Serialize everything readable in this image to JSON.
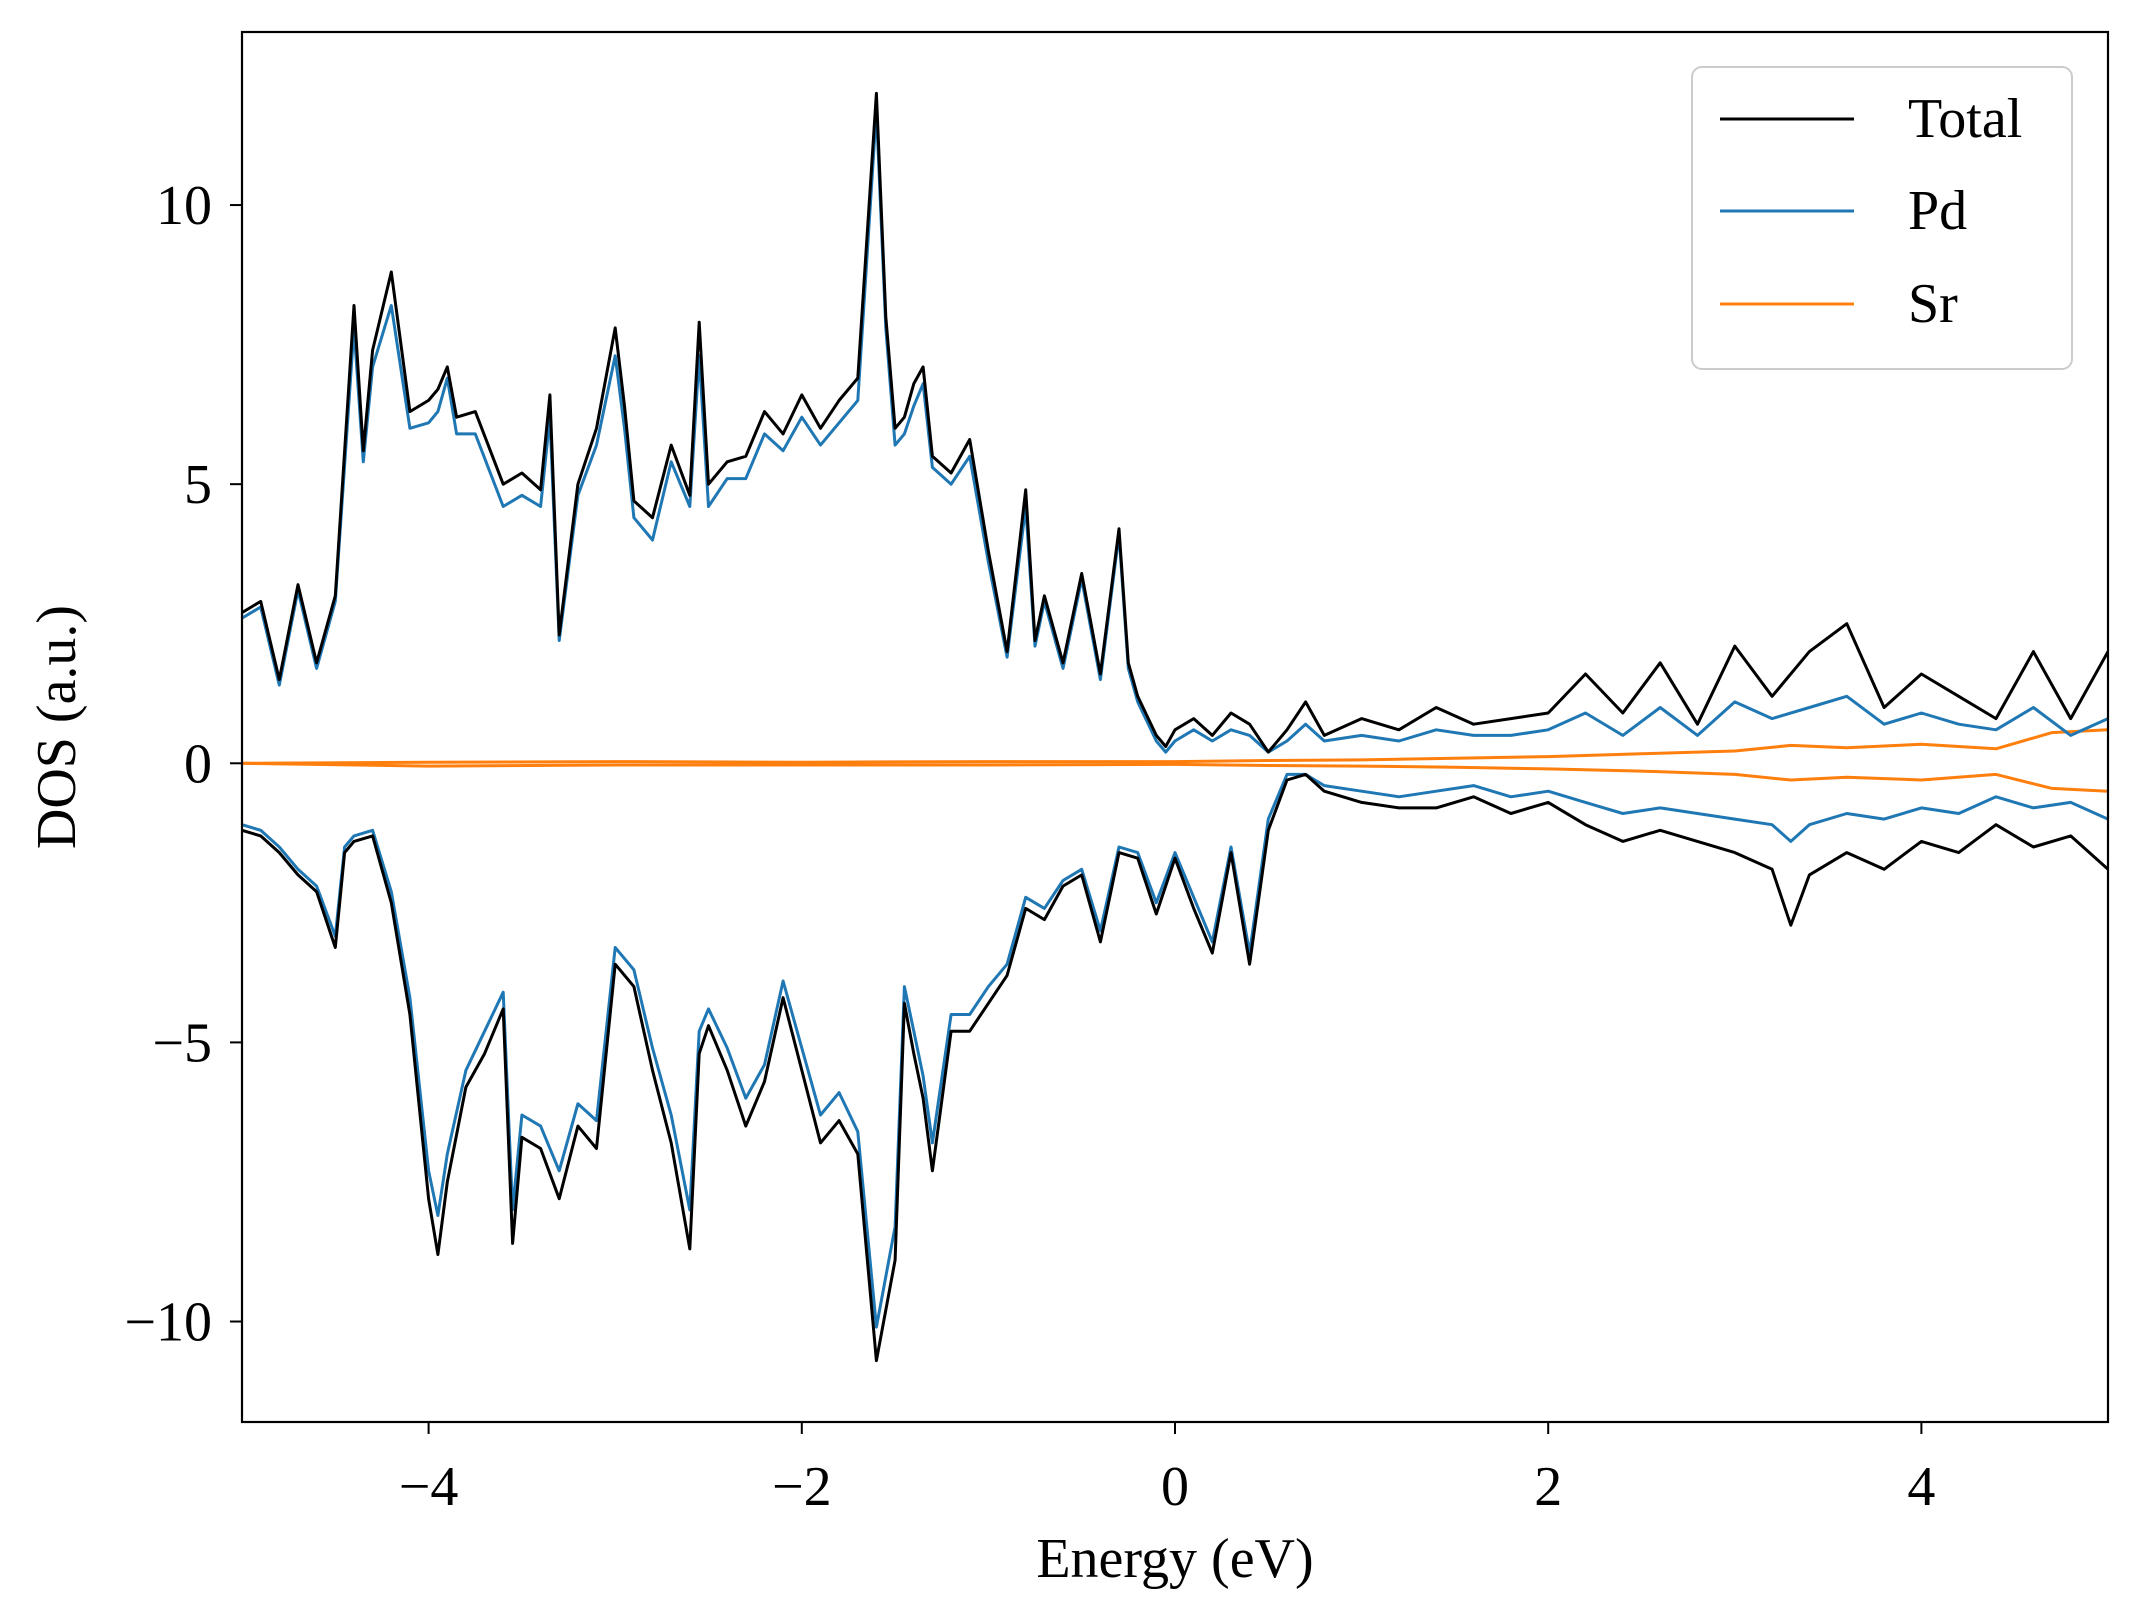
{
  "chart_data": {
    "type": "line",
    "title": "",
    "xlabel": "Energy (eV)",
    "ylabel": "DOS (a.u.)",
    "xlim": [
      -5,
      5
    ],
    "ylim": [
      -11.8,
      13.1
    ],
    "xticks": [
      -4,
      -2,
      0,
      2,
      4
    ],
    "yticks": [
      -10,
      -5,
      0,
      5,
      10
    ],
    "xtick_labels": [
      "−4",
      "−2",
      "0",
      "2",
      "4"
    ],
    "ytick_labels": [
      "−10",
      "−5",
      "0",
      "5",
      "10"
    ],
    "grid": false,
    "legend_position": "top-right",
    "series": [
      {
        "name": "Total",
        "color": "#000000",
        "spin_up": {
          "x": [
            -5.0,
            -4.9,
            -4.8,
            -4.7,
            -4.6,
            -4.5,
            -4.4,
            -4.35,
            -4.3,
            -4.2,
            -4.1,
            -4.0,
            -3.95,
            -3.9,
            -3.85,
            -3.75,
            -3.6,
            -3.5,
            -3.4,
            -3.35,
            -3.3,
            -3.2,
            -3.1,
            -3.0,
            -2.95,
            -2.9,
            -2.8,
            -2.7,
            -2.6,
            -2.55,
            -2.5,
            -2.4,
            -2.3,
            -2.2,
            -2.1,
            -2.0,
            -1.9,
            -1.8,
            -1.7,
            -1.6,
            -1.55,
            -1.5,
            -1.45,
            -1.4,
            -1.35,
            -1.3,
            -1.2,
            -1.1,
            -1.0,
            -0.9,
            -0.8,
            -0.75,
            -0.7,
            -0.6,
            -0.5,
            -0.4,
            -0.3,
            -0.25,
            -0.2,
            -0.1,
            -0.05,
            0.0,
            0.1,
            0.2,
            0.3,
            0.4,
            0.5,
            0.6,
            0.7,
            0.8,
            1.0,
            1.2,
            1.4,
            1.6,
            1.8,
            2.0,
            2.2,
            2.4,
            2.6,
            2.8,
            3.0,
            3.2,
            3.4,
            3.6,
            3.8,
            4.0,
            4.2,
            4.4,
            4.6,
            4.8,
            5.0
          ],
          "y": [
            2.7,
            2.9,
            1.5,
            3.2,
            1.8,
            3.0,
            8.2,
            5.6,
            7.4,
            8.8,
            6.3,
            6.5,
            6.7,
            7.1,
            6.2,
            6.3,
            5.0,
            5.2,
            4.9,
            6.6,
            2.3,
            5.0,
            6.0,
            7.8,
            6.4,
            4.7,
            4.4,
            5.7,
            4.8,
            7.9,
            5.0,
            5.4,
            5.5,
            6.3,
            5.9,
            6.6,
            6.0,
            6.5,
            6.9,
            12.0,
            8.0,
            6.0,
            6.2,
            6.8,
            7.1,
            5.5,
            5.2,
            5.8,
            3.8,
            2.0,
            4.9,
            2.2,
            3.0,
            1.8,
            3.4,
            1.6,
            4.2,
            1.8,
            1.2,
            0.5,
            0.3,
            0.6,
            0.8,
            0.5,
            0.9,
            0.7,
            0.2,
            0.6,
            1.1,
            0.5,
            0.8,
            0.6,
            1.0,
            0.7,
            0.8,
            0.9,
            1.6,
            0.9,
            1.8,
            0.7,
            2.1,
            1.2,
            2.0,
            2.5,
            1.0,
            1.6,
            1.2,
            0.8,
            2.0,
            0.8,
            2.0
          ]
        },
        "spin_down": {
          "x": [
            -5.0,
            -4.9,
            -4.8,
            -4.7,
            -4.6,
            -4.5,
            -4.45,
            -4.4,
            -4.3,
            -4.2,
            -4.1,
            -4.0,
            -3.95,
            -3.9,
            -3.8,
            -3.7,
            -3.6,
            -3.55,
            -3.5,
            -3.4,
            -3.3,
            -3.2,
            -3.1,
            -3.0,
            -2.9,
            -2.8,
            -2.7,
            -2.6,
            -2.55,
            -2.5,
            -2.4,
            -2.3,
            -2.2,
            -2.1,
            -2.0,
            -1.9,
            -1.8,
            -1.7,
            -1.6,
            -1.5,
            -1.45,
            -1.4,
            -1.35,
            -1.3,
            -1.2,
            -1.1,
            -1.0,
            -0.9,
            -0.8,
            -0.7,
            -0.6,
            -0.5,
            -0.4,
            -0.3,
            -0.2,
            -0.1,
            0.0,
            0.1,
            0.2,
            0.3,
            0.4,
            0.5,
            0.6,
            0.7,
            0.8,
            1.0,
            1.2,
            1.4,
            1.6,
            1.8,
            2.0,
            2.2,
            2.4,
            2.6,
            2.8,
            3.0,
            3.2,
            3.3,
            3.4,
            3.6,
            3.8,
            4.0,
            4.2,
            4.4,
            4.6,
            4.8,
            5.0
          ],
          "y": [
            -1.2,
            -1.3,
            -1.6,
            -2.0,
            -2.3,
            -3.3,
            -1.6,
            -1.4,
            -1.3,
            -2.5,
            -4.5,
            -7.8,
            -8.8,
            -7.5,
            -5.8,
            -5.2,
            -4.4,
            -8.6,
            -6.7,
            -6.9,
            -7.8,
            -6.5,
            -6.9,
            -3.6,
            -4.0,
            -5.5,
            -6.8,
            -8.7,
            -5.2,
            -4.7,
            -5.5,
            -6.5,
            -5.7,
            -4.2,
            -5.5,
            -6.8,
            -6.4,
            -7.0,
            -10.7,
            -8.9,
            -4.3,
            -5.2,
            -6.0,
            -7.3,
            -4.8,
            -4.8,
            -4.3,
            -3.8,
            -2.6,
            -2.8,
            -2.2,
            -2.0,
            -3.2,
            -1.6,
            -1.7,
            -2.7,
            -1.7,
            -2.6,
            -3.4,
            -1.6,
            -3.6,
            -1.2,
            -0.3,
            -0.2,
            -0.5,
            -0.7,
            -0.8,
            -0.8,
            -0.6,
            -0.9,
            -0.7,
            -1.1,
            -1.4,
            -1.2,
            -1.4,
            -1.6,
            -1.9,
            -2.9,
            -2.0,
            -1.6,
            -1.9,
            -1.4,
            -1.6,
            -1.1,
            -1.5,
            -1.3,
            -1.9
          ]
        }
      },
      {
        "name": "Pd",
        "color": "#1f77b4",
        "spin_up": {
          "x": [
            -5.0,
            -4.9,
            -4.8,
            -4.7,
            -4.6,
            -4.5,
            -4.4,
            -4.35,
            -4.3,
            -4.2,
            -4.1,
            -4.0,
            -3.95,
            -3.9,
            -3.85,
            -3.75,
            -3.6,
            -3.5,
            -3.4,
            -3.35,
            -3.3,
            -3.2,
            -3.1,
            -3.0,
            -2.95,
            -2.9,
            -2.8,
            -2.7,
            -2.6,
            -2.55,
            -2.5,
            -2.4,
            -2.3,
            -2.2,
            -2.1,
            -2.0,
            -1.9,
            -1.8,
            -1.7,
            -1.6,
            -1.55,
            -1.5,
            -1.45,
            -1.4,
            -1.35,
            -1.3,
            -1.2,
            -1.1,
            -1.0,
            -0.9,
            -0.8,
            -0.75,
            -0.7,
            -0.6,
            -0.5,
            -0.4,
            -0.3,
            -0.25,
            -0.2,
            -0.1,
            -0.05,
            0.0,
            0.1,
            0.2,
            0.3,
            0.4,
            0.5,
            0.6,
            0.7,
            0.8,
            1.0,
            1.2,
            1.4,
            1.6,
            1.8,
            2.0,
            2.2,
            2.4,
            2.6,
            2.8,
            3.0,
            3.2,
            3.4,
            3.6,
            3.8,
            4.0,
            4.2,
            4.4,
            4.6,
            4.8,
            5.0
          ],
          "y": [
            2.6,
            2.8,
            1.4,
            3.1,
            1.7,
            2.9,
            7.8,
            5.4,
            7.1,
            8.2,
            6.0,
            6.1,
            6.3,
            6.9,
            5.9,
            5.9,
            4.6,
            4.8,
            4.6,
            6.2,
            2.2,
            4.8,
            5.7,
            7.3,
            6.0,
            4.4,
            4.0,
            5.4,
            4.6,
            7.3,
            4.6,
            5.1,
            5.1,
            5.9,
            5.6,
            6.2,
            5.7,
            6.1,
            6.5,
            11.7,
            7.8,
            5.7,
            5.9,
            6.4,
            6.8,
            5.3,
            5.0,
            5.5,
            3.6,
            1.9,
            4.6,
            2.1,
            2.9,
            1.7,
            3.3,
            1.5,
            4.1,
            1.7,
            1.1,
            0.4,
            0.2,
            0.4,
            0.6,
            0.4,
            0.6,
            0.5,
            0.2,
            0.4,
            0.7,
            0.4,
            0.5,
            0.4,
            0.6,
            0.5,
            0.5,
            0.6,
            0.9,
            0.5,
            1.0,
            0.5,
            1.1,
            0.8,
            1.0,
            1.2,
            0.7,
            0.9,
            0.7,
            0.6,
            1.0,
            0.5,
            0.8
          ]
        },
        "spin_down": {
          "x": [
            -5.0,
            -4.9,
            -4.8,
            -4.7,
            -4.6,
            -4.5,
            -4.45,
            -4.4,
            -4.3,
            -4.2,
            -4.1,
            -4.0,
            -3.95,
            -3.9,
            -3.8,
            -3.7,
            -3.6,
            -3.55,
            -3.5,
            -3.4,
            -3.3,
            -3.2,
            -3.1,
            -3.0,
            -2.9,
            -2.8,
            -2.7,
            -2.6,
            -2.55,
            -2.5,
            -2.4,
            -2.3,
            -2.2,
            -2.1,
            -2.0,
            -1.9,
            -1.8,
            -1.7,
            -1.6,
            -1.5,
            -1.45,
            -1.4,
            -1.35,
            -1.3,
            -1.2,
            -1.1,
            -1.0,
            -0.9,
            -0.8,
            -0.7,
            -0.6,
            -0.5,
            -0.4,
            -0.3,
            -0.2,
            -0.1,
            0.0,
            0.1,
            0.2,
            0.3,
            0.4,
            0.5,
            0.6,
            0.7,
            0.8,
            1.0,
            1.2,
            1.4,
            1.6,
            1.8,
            2.0,
            2.2,
            2.4,
            2.6,
            2.8,
            3.0,
            3.2,
            3.3,
            3.4,
            3.6,
            3.8,
            4.0,
            4.2,
            4.4,
            4.6,
            4.8,
            5.0
          ],
          "y": [
            -1.1,
            -1.2,
            -1.5,
            -1.9,
            -2.2,
            -3.1,
            -1.5,
            -1.3,
            -1.2,
            -2.3,
            -4.2,
            -7.3,
            -8.1,
            -7.0,
            -5.5,
            -4.8,
            -4.1,
            -8.0,
            -6.3,
            -6.5,
            -7.3,
            -6.1,
            -6.4,
            -3.3,
            -3.7,
            -5.1,
            -6.3,
            -8.0,
            -4.8,
            -4.4,
            -5.1,
            -6.0,
            -5.4,
            -3.9,
            -5.1,
            -6.3,
            -5.9,
            -6.6,
            -10.1,
            -8.3,
            -4.0,
            -4.8,
            -5.6,
            -6.8,
            -4.5,
            -4.5,
            -4.0,
            -3.6,
            -2.4,
            -2.6,
            -2.1,
            -1.9,
            -3.0,
            -1.5,
            -1.6,
            -2.5,
            -1.6,
            -2.4,
            -3.2,
            -1.5,
            -3.4,
            -1.0,
            -0.2,
            -0.2,
            -0.4,
            -0.5,
            -0.6,
            -0.5,
            -0.4,
            -0.6,
            -0.5,
            -0.7,
            -0.9,
            -0.8,
            -0.9,
            -1.0,
            -1.1,
            -1.4,
            -1.1,
            -0.9,
            -1.0,
            -0.8,
            -0.9,
            -0.6,
            -0.8,
            -0.7,
            -1.0
          ]
        }
      },
      {
        "name": "Sr",
        "color": "#ff7f0e",
        "spin_up": {
          "x": [
            -5.0,
            -4.0,
            -3.0,
            -2.0,
            -1.0,
            0.0,
            0.5,
            1.0,
            1.5,
            2.0,
            2.5,
            3.0,
            3.3,
            3.6,
            4.0,
            4.4,
            4.7,
            5.0
          ],
          "y": [
            0.0,
            0.02,
            0.03,
            0.02,
            0.03,
            0.03,
            0.05,
            0.06,
            0.09,
            0.12,
            0.17,
            0.22,
            0.32,
            0.28,
            0.34,
            0.26,
            0.55,
            0.6
          ]
        },
        "spin_down": {
          "x": [
            -5.0,
            -4.0,
            -3.0,
            -2.0,
            -1.0,
            0.0,
            0.5,
            1.0,
            1.5,
            2.0,
            2.5,
            3.0,
            3.3,
            3.6,
            4.0,
            4.4,
            4.7,
            5.0
          ],
          "y": [
            0.0,
            -0.05,
            -0.03,
            -0.03,
            -0.03,
            -0.02,
            -0.04,
            -0.05,
            -0.07,
            -0.1,
            -0.14,
            -0.2,
            -0.3,
            -0.25,
            -0.3,
            -0.2,
            -0.45,
            -0.5
          ]
        }
      }
    ]
  }
}
